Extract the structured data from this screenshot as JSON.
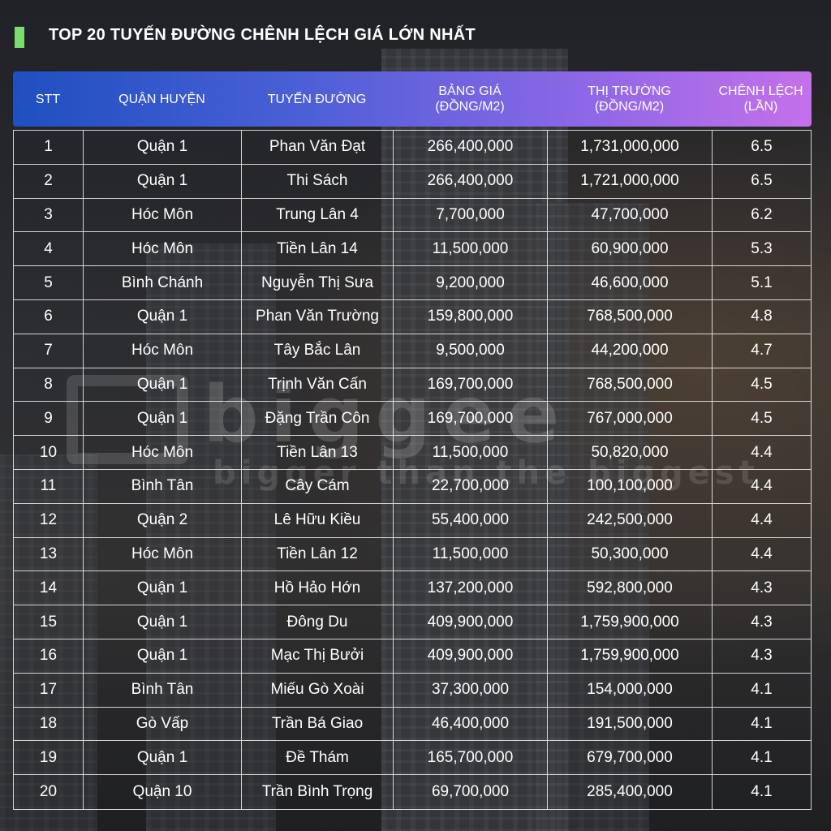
{
  "title": "TOP 20 TUYẾN ĐƯỜNG CHÊNH LỆCH GIÁ LỚN NHẤT",
  "watermark": {
    "brand": "biggee",
    "tagline": "bigger than the biggest"
  },
  "table": {
    "headers": [
      {
        "line1": "STT",
        "line2": ""
      },
      {
        "line1": "QUẬN HUYỆN",
        "line2": ""
      },
      {
        "line1": "TUYẾN ĐƯỜNG",
        "line2": ""
      },
      {
        "line1": "BẢNG GIÁ",
        "line2": "(ĐỒNG/M2)"
      },
      {
        "line1": "THỊ TRƯỜNG",
        "line2": "(ĐỒNG/M2)"
      },
      {
        "line1": "CHÊNH LỆCH",
        "line2": "(LẦN)"
      }
    ],
    "rows": [
      [
        "1",
        "Quận 1",
        "Phan Văn Đạt",
        "266,400,000",
        "1,731,000,000",
        "6.5"
      ],
      [
        "2",
        "Quận 1",
        "Thi Sách",
        "266,400,000",
        "1,721,000,000",
        "6.5"
      ],
      [
        "3",
        "Hóc Môn",
        "Trung Lân 4",
        "7,700,000",
        "47,700,000",
        "6.2"
      ],
      [
        "4",
        "Hóc Môn",
        "Tiền Lân 14",
        "11,500,000",
        "60,900,000",
        "5.3"
      ],
      [
        "5",
        "Bình Chánh",
        "Nguyễn Thị Sưa",
        "9,200,000",
        "46,600,000",
        "5.1"
      ],
      [
        "6",
        "Quận 1",
        "Phan Văn Trường",
        "159,800,000",
        "768,500,000",
        "4.8"
      ],
      [
        "7",
        "Hóc Môn",
        "Tây Bắc Lân",
        "9,500,000",
        "44,200,000",
        "4.7"
      ],
      [
        "8",
        "Quận 1",
        "Trịnh Văn Cấn",
        "169,700,000",
        "768,500,000",
        "4.5"
      ],
      [
        "9",
        "Quận 1",
        "Đặng Trần Côn",
        "169,700,000",
        "767,000,000",
        "4.5"
      ],
      [
        "10",
        "Hóc Môn",
        "Tiền Lân 13",
        "11,500,000",
        "50,820,000",
        "4.4"
      ],
      [
        "11",
        "Bình Tân",
        "Cây Cám",
        "22,700,000",
        "100,100,000",
        "4.4"
      ],
      [
        "12",
        "Quận 2",
        "Lê Hữu Kiều",
        "55,400,000",
        "242,500,000",
        "4.4"
      ],
      [
        "13",
        "Hóc Môn",
        "Tiền Lân 12",
        "11,500,000",
        "50,300,000",
        "4.4"
      ],
      [
        "14",
        "Quận 1",
        "Hồ Hảo Hớn",
        "137,200,000",
        "592,800,000",
        "4.3"
      ],
      [
        "15",
        "Quận 1",
        "Đông Du",
        "409,900,000",
        "1,759,900,000",
        "4.3"
      ],
      [
        "16",
        "Quận 1",
        "Mạc Thị Bưởi",
        "409,900,000",
        "1,759,900,000",
        "4.3"
      ],
      [
        "17",
        "Bình Tân",
        "Miếu Gò Xoài",
        "37,300,000",
        "154,000,000",
        "4.1"
      ],
      [
        "18",
        "Gò Vấp",
        "Trần Bá Giao",
        "46,400,000",
        "191,500,000",
        "4.1"
      ],
      [
        "19",
        "Quận 1",
        "Đề Thám",
        "165,700,000",
        "679,700,000",
        "4.1"
      ],
      [
        "20",
        "Quận 10",
        "Trần Bình Trọng",
        "69,700,000",
        "285,400,000",
        "4.1"
      ]
    ]
  }
}
